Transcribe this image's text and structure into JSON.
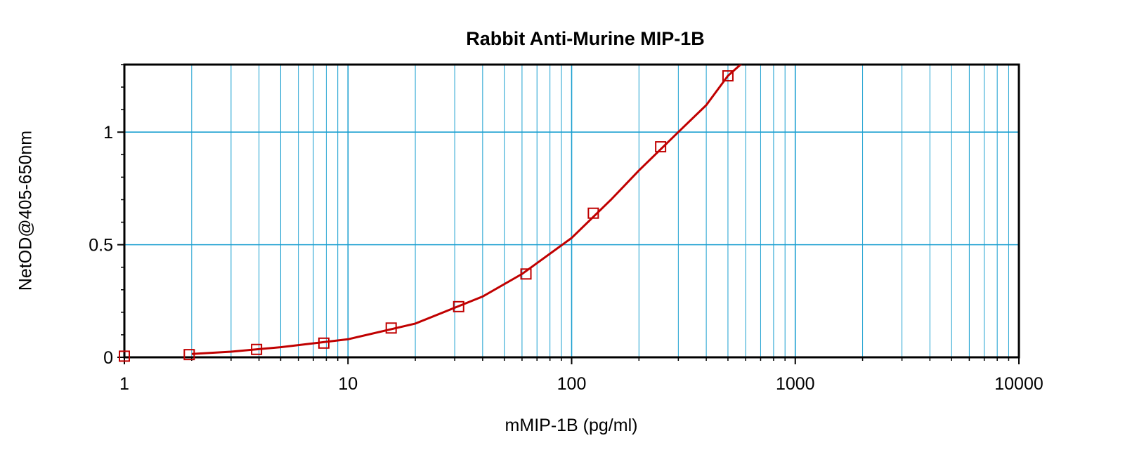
{
  "chart_data": {
    "type": "scatter",
    "title": "Rabbit Anti-Murine MIP-1B",
    "xlabel": "mMIP-1B (pg/ml)",
    "ylabel": "NetOD@405-650nm",
    "x_scale": "log",
    "xlim": [
      1,
      10000
    ],
    "ylim": [
      0,
      1.3
    ],
    "x_ticks": [
      1,
      10,
      100,
      1000,
      10000
    ],
    "x_tick_labels": [
      "1",
      "10",
      "100",
      "1000",
      "10000"
    ],
    "y_ticks": [
      0,
      0.5,
      1
    ],
    "y_tick_labels": [
      "0",
      "0.5",
      "1"
    ],
    "grid": true,
    "series": [
      {
        "x": [
          1,
          1.95,
          3.9,
          7.8,
          15.6,
          31.25,
          62.5,
          125,
          250,
          500
        ],
        "y": [
          0.005,
          0.012,
          0.035,
          0.063,
          0.13,
          0.225,
          0.37,
          0.64,
          0.935,
          1.25
        ],
        "marker": "open-square",
        "color": "#c00000"
      }
    ],
    "fit_curve": {
      "x": [
        2,
        3,
        5,
        10,
        20,
        40,
        60,
        80,
        100,
        150,
        200,
        300,
        400,
        500,
        600
      ],
      "y": [
        0.015,
        0.025,
        0.045,
        0.08,
        0.15,
        0.27,
        0.37,
        0.46,
        0.53,
        0.7,
        0.83,
        1.0,
        1.12,
        1.25,
        1.32
      ],
      "color": "#c00000"
    },
    "grid_color": "#1a9fd0",
    "axes_color": "#000000"
  }
}
